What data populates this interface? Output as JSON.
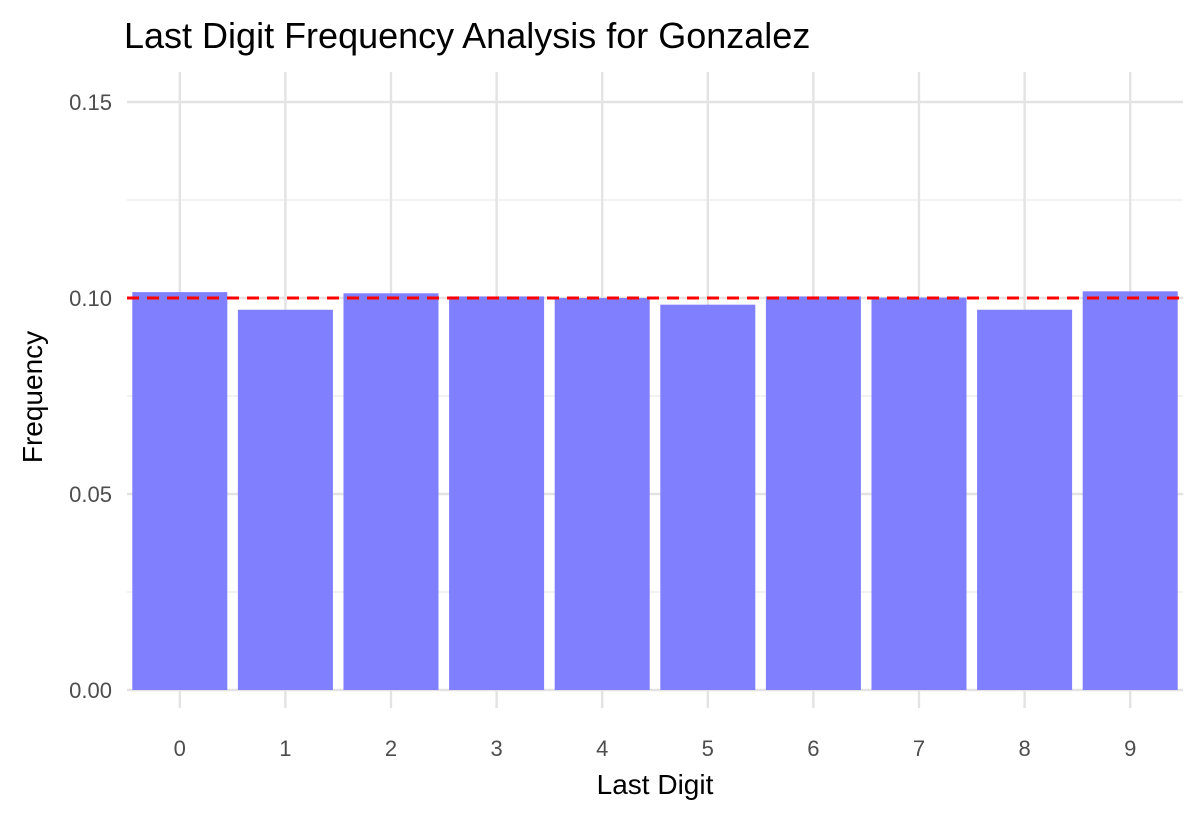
{
  "chart_data": {
    "type": "bar",
    "title": "Last Digit Frequency Analysis for Gonzalez",
    "xlabel": "Last Digit",
    "ylabel": "Frequency",
    "categories": [
      "0",
      "1",
      "2",
      "3",
      "4",
      "5",
      "6",
      "7",
      "8",
      "9"
    ],
    "values": [
      0.1015,
      0.097,
      0.1012,
      0.1004,
      0.1,
      0.0983,
      0.1004,
      0.1001,
      0.097,
      0.1017
    ],
    "ylim": [
      0,
      0.16
    ],
    "yticks": [
      "0.00",
      "0.05",
      "0.10",
      "0.15"
    ],
    "reference_line": {
      "value": 0.1,
      "style": "dashed",
      "color": "#ff0000"
    },
    "bar_color": "#8080ff",
    "grid": true,
    "legend": "none"
  }
}
